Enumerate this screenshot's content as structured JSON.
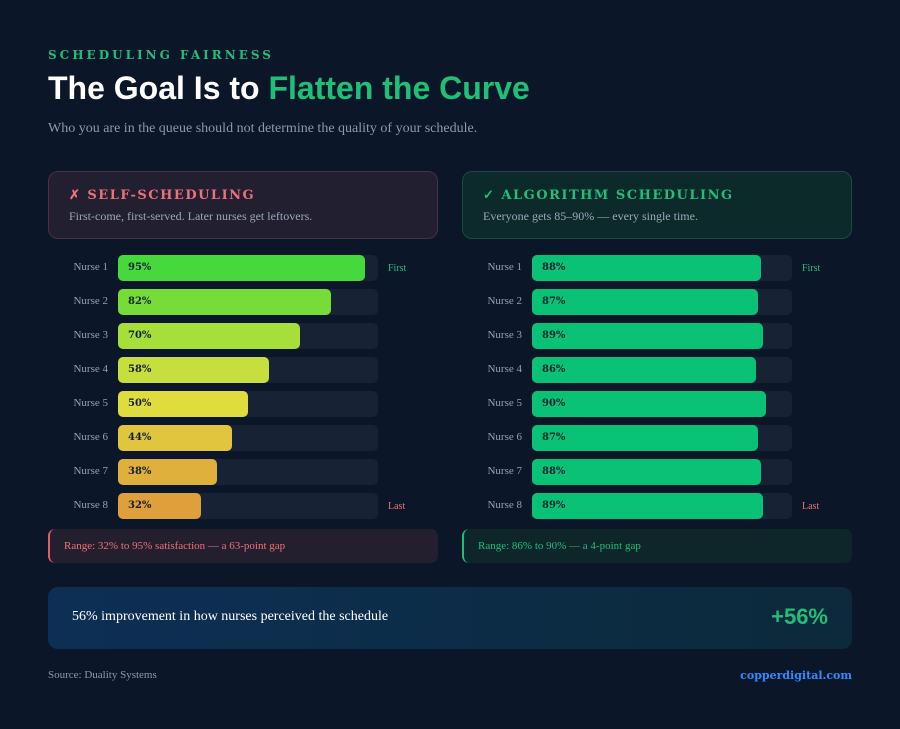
{
  "header": {
    "eyebrow": "SCHEDULING FAIRNESS",
    "title_main": "The Goal Is to ",
    "title_accent": "Flatten the Curve",
    "subtitle": "Who you are in the queue should not determine the quality of your schedule."
  },
  "left_panel": {
    "title": "✗ SELF-SCHEDULING",
    "description": "First-come, first-served. Later nurses get leftovers.",
    "range_note": "Range: 32% to 95% satisfaction — a 63-point gap"
  },
  "right_panel": {
    "title": "✓ ALGORITHM SCHEDULING",
    "description": "Everyone gets 85–90% — every single time.",
    "range_note": "Range: 86% to 90% — a 4-point gap"
  },
  "banner": {
    "text": "56% improvement in how nurses perceived the schedule",
    "value": "+56%"
  },
  "footer": {
    "source": "Source: Duality Systems",
    "brand": "copperdigital.com"
  },
  "colors": {
    "accent_green": "#1fbf77",
    "alert_red": "#f0707a",
    "self_scheduling_gradient": [
      "#47d93c",
      "#76dd38",
      "#a6df3a",
      "#c6df3e",
      "#dfdc3e",
      "#e1c53e",
      "#e0b03c",
      "#df9f3a"
    ],
    "algorithm_bar": "#0ac275"
  },
  "chart_data": [
    {
      "type": "bar",
      "orientation": "horizontal",
      "title": "✗ SELF-SCHEDULING",
      "categories": [
        "Nurse 1",
        "Nurse 2",
        "Nurse 3",
        "Nurse 4",
        "Nurse 5",
        "Nurse 6",
        "Nurse 7",
        "Nurse 8"
      ],
      "values": [
        95,
        82,
        70,
        58,
        50,
        44,
        38,
        32
      ],
      "value_labels": [
        "95%",
        "82%",
        "70%",
        "58%",
        "50%",
        "44%",
        "38%",
        "32%"
      ],
      "annotations": {
        "first": "First",
        "last": "Last"
      },
      "xlim": [
        0,
        100
      ]
    },
    {
      "type": "bar",
      "orientation": "horizontal",
      "title": "✓ ALGORITHM SCHEDULING",
      "categories": [
        "Nurse 1",
        "Nurse 2",
        "Nurse 3",
        "Nurse 4",
        "Nurse 5",
        "Nurse 6",
        "Nurse 7",
        "Nurse 8"
      ],
      "values": [
        88,
        87,
        89,
        86,
        90,
        87,
        88,
        89
      ],
      "value_labels": [
        "88%",
        "87%",
        "89%",
        "86%",
        "90%",
        "87%",
        "88%",
        "89%"
      ],
      "annotations": {
        "first": "First",
        "last": "Last"
      },
      "xlim": [
        0,
        100
      ]
    }
  ]
}
